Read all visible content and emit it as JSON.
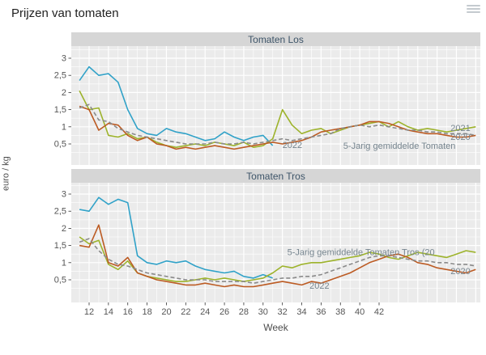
{
  "title": "Prijzen van tomaten",
  "axis": {
    "x_label": "Week",
    "y_label": "euro / kg"
  },
  "colors": {
    "panel_bg": "#ebebeb",
    "grid": "#ffffff",
    "strip_bg": "#d6d6d6",
    "strip_text": "#3d5468",
    "tick_text": "#555555",
    "axis_text": "#4d4d4d",
    "annotation": "#76858f",
    "title_text": "#1f1f1f",
    "line_2022": "#31a2c8",
    "line_2021": "#9db32b",
    "line_2020": "#bc5b23",
    "line_avg": "#8a8a8a"
  },
  "chart_data": [
    {
      "type": "line",
      "title": "Tomaten Los",
      "xlabel": "Week",
      "ylabel": "euro / kg",
      "xlim": [
        10.2,
        52.5
      ],
      "ylim": [
        -0.1,
        3.35
      ],
      "grid": true,
      "legend": "direct-labels",
      "x": [
        11,
        12,
        13,
        14,
        15,
        16,
        17,
        18,
        19,
        20,
        21,
        22,
        23,
        24,
        25,
        26,
        27,
        28,
        29,
        30,
        31,
        32,
        33,
        34,
        35,
        36,
        37,
        38,
        39,
        40,
        41,
        42,
        43,
        44,
        45,
        46,
        47,
        48,
        49,
        50,
        51,
        52
      ],
      "xtick_values": [
        12,
        14,
        16,
        18,
        20,
        22,
        24,
        26,
        28,
        30,
        32,
        34,
        36,
        38,
        40,
        42
      ],
      "xtick_labels": [
        "12",
        "14",
        "16",
        "18",
        "20",
        "22",
        "24",
        "26",
        "28",
        "30",
        "32",
        "34",
        "36",
        "38",
        "40",
        "42"
      ],
      "ytick_values": [
        0.5,
        1,
        1.5,
        2,
        2.5,
        3
      ],
      "ytick_labels": [
        "0,5",
        "1",
        "1,5",
        "2",
        "2,5",
        "3"
      ],
      "series": [
        {
          "name": "2022",
          "color": "#31a2c8",
          "dashed": false,
          "values": [
            2.35,
            2.75,
            2.5,
            2.55,
            2.3,
            1.5,
            0.95,
            0.8,
            0.75,
            0.95,
            0.85,
            0.8,
            0.7,
            0.6,
            0.65,
            0.85,
            0.7,
            0.6,
            0.7,
            0.75,
            0.45,
            null,
            null,
            null,
            null,
            null,
            null,
            null,
            null,
            null,
            null,
            null,
            null,
            null,
            null,
            null,
            null,
            null,
            null,
            null,
            null,
            null
          ]
        },
        {
          "name": "2021",
          "color": "#9db32b",
          "dashed": false,
          "values": [
            2.05,
            1.5,
            1.55,
            0.75,
            0.7,
            0.8,
            0.65,
            0.7,
            0.55,
            0.45,
            0.4,
            0.45,
            0.5,
            0.45,
            0.55,
            0.5,
            0.45,
            0.55,
            0.4,
            0.45,
            0.65,
            1.5,
            1.05,
            0.8,
            0.9,
            0.95,
            0.8,
            0.9,
            1.0,
            1.05,
            1.1,
            1.15,
            1.0,
            1.15,
            1.0,
            0.9,
            0.95,
            0.9,
            0.85,
            0.9,
            0.95,
            1.0
          ]
        },
        {
          "name": "2020",
          "color": "#bc5b23",
          "dashed": false,
          "values": [
            1.6,
            1.5,
            0.9,
            1.1,
            1.05,
            0.75,
            0.6,
            0.7,
            0.5,
            0.45,
            0.35,
            0.4,
            0.35,
            0.4,
            0.45,
            0.4,
            0.35,
            0.4,
            0.45,
            0.5,
            0.55,
            0.5,
            0.55,
            0.6,
            0.7,
            0.85,
            0.9,
            0.95,
            1.0,
            1.05,
            1.15,
            1.15,
            1.1,
            1.0,
            0.9,
            0.85,
            0.8,
            0.8,
            0.75,
            0.7,
            0.7,
            0.75
          ]
        },
        {
          "name": "5-Jarig gemiddelde Tomaten Los",
          "color": "#8a8a8a",
          "dashed": true,
          "values": [
            1.55,
            1.65,
            1.2,
            1.15,
            0.95,
            0.85,
            0.75,
            0.7,
            0.65,
            0.6,
            0.55,
            0.5,
            0.5,
            0.5,
            0.55,
            0.5,
            0.5,
            0.55,
            0.5,
            0.55,
            0.6,
            0.65,
            0.6,
            0.65,
            0.7,
            0.75,
            0.8,
            0.95,
            1.0,
            1.05,
            1.0,
            1.05,
            1.0,
            0.95,
            0.9,
            0.9,
            0.85,
            0.85,
            0.8,
            0.8,
            0.8,
            0.75
          ]
        }
      ],
      "annotations": [
        {
          "text": "2022",
          "week": 32.0,
          "value": 0.38
        },
        {
          "text": "5-Jarig gemiddelde Tomaten",
          "week": 38.3,
          "value": 0.36
        },
        {
          "text": "2021",
          "week": 49.4,
          "value": 0.88
        },
        {
          "text": "2020",
          "week": 49.4,
          "value": 0.62
        }
      ]
    },
    {
      "type": "line",
      "title": "Tomaten Tros",
      "xlabel": "Week",
      "ylabel": "euro / kg",
      "xlim": [
        10.2,
        52.5
      ],
      "ylim": [
        -0.15,
        3.33
      ],
      "grid": true,
      "legend": "direct-labels",
      "x": [
        11,
        12,
        13,
        14,
        15,
        16,
        17,
        18,
        19,
        20,
        21,
        22,
        23,
        24,
        25,
        26,
        27,
        28,
        29,
        30,
        31,
        32,
        33,
        34,
        35,
        36,
        37,
        38,
        39,
        40,
        41,
        42,
        43,
        44,
        45,
        46,
        47,
        48,
        49,
        50,
        51,
        52
      ],
      "xtick_values": [
        12,
        14,
        16,
        18,
        20,
        22,
        24,
        26,
        28,
        30,
        32,
        34,
        36,
        38,
        40,
        42
      ],
      "xtick_labels": [
        "12",
        "14",
        "16",
        "18",
        "20",
        "22",
        "24",
        "26",
        "28",
        "30",
        "32",
        "34",
        "36",
        "38",
        "40",
        "42"
      ],
      "ytick_values": [
        0.5,
        1,
        1.5,
        2,
        2.5,
        3
      ],
      "ytick_labels": [
        "0,5",
        "1",
        "1,5",
        "2",
        "2,5",
        "3"
      ],
      "series": [
        {
          "name": "2022",
          "color": "#31a2c8",
          "dashed": false,
          "values": [
            2.55,
            2.5,
            2.9,
            2.7,
            2.85,
            2.75,
            1.2,
            1.0,
            0.95,
            1.05,
            1.0,
            1.05,
            0.9,
            0.8,
            0.75,
            0.7,
            0.75,
            0.6,
            0.55,
            0.65,
            0.55,
            null,
            null,
            null,
            null,
            null,
            null,
            null,
            null,
            null,
            null,
            null,
            null,
            null,
            null,
            null,
            null,
            null,
            null,
            null,
            null,
            null
          ]
        },
        {
          "name": "2021",
          "color": "#9db32b",
          "dashed": false,
          "values": [
            1.75,
            1.55,
            1.65,
            0.95,
            0.8,
            1.05,
            0.7,
            0.6,
            0.55,
            0.5,
            0.45,
            0.45,
            0.5,
            0.55,
            0.5,
            0.55,
            0.5,
            0.45,
            0.5,
            0.55,
            0.7,
            0.9,
            0.85,
            0.95,
            1.0,
            1.0,
            1.05,
            1.1,
            1.15,
            1.2,
            1.3,
            1.25,
            1.15,
            1.1,
            1.2,
            1.3,
            1.25,
            1.2,
            1.15,
            1.25,
            1.35,
            1.3
          ]
        },
        {
          "name": "2020",
          "color": "#bc5b23",
          "dashed": false,
          "values": [
            1.5,
            1.45,
            2.1,
            1.0,
            0.9,
            1.15,
            0.7,
            0.6,
            0.5,
            0.45,
            0.4,
            0.35,
            0.35,
            0.4,
            0.35,
            0.3,
            0.35,
            0.3,
            0.3,
            0.35,
            0.4,
            0.45,
            0.4,
            0.35,
            0.45,
            0.4,
            0.5,
            0.6,
            0.7,
            0.85,
            1.0,
            1.1,
            1.2,
            1.25,
            1.15,
            1.0,
            0.95,
            0.85,
            0.8,
            0.75,
            0.7,
            0.8
          ]
        },
        {
          "name": "5-Jarig gemiddelde Tomaten Tros",
          "color": "#8a8a8a",
          "dashed": true,
          "values": [
            1.6,
            1.7,
            1.35,
            1.1,
            0.95,
            0.9,
            0.8,
            0.7,
            0.65,
            0.6,
            0.55,
            0.5,
            0.5,
            0.5,
            0.45,
            0.45,
            0.45,
            0.45,
            0.4,
            0.45,
            0.5,
            0.55,
            0.55,
            0.6,
            0.6,
            0.65,
            0.75,
            0.85,
            0.95,
            1.05,
            1.15,
            1.2,
            1.2,
            1.15,
            1.1,
            1.05,
            1.05,
            1.0,
            1.0,
            0.95,
            0.95,
            0.9
          ]
        }
      ],
      "annotations": [
        {
          "text": "5-Jarig gemiddelde Tomaten Tros (20",
          "week": 32.5,
          "value": 1.22
        },
        {
          "text": "2022",
          "week": 34.8,
          "value": 0.24
        },
        {
          "text": "2020",
          "week": 49.4,
          "value": 0.67
        }
      ]
    }
  ]
}
